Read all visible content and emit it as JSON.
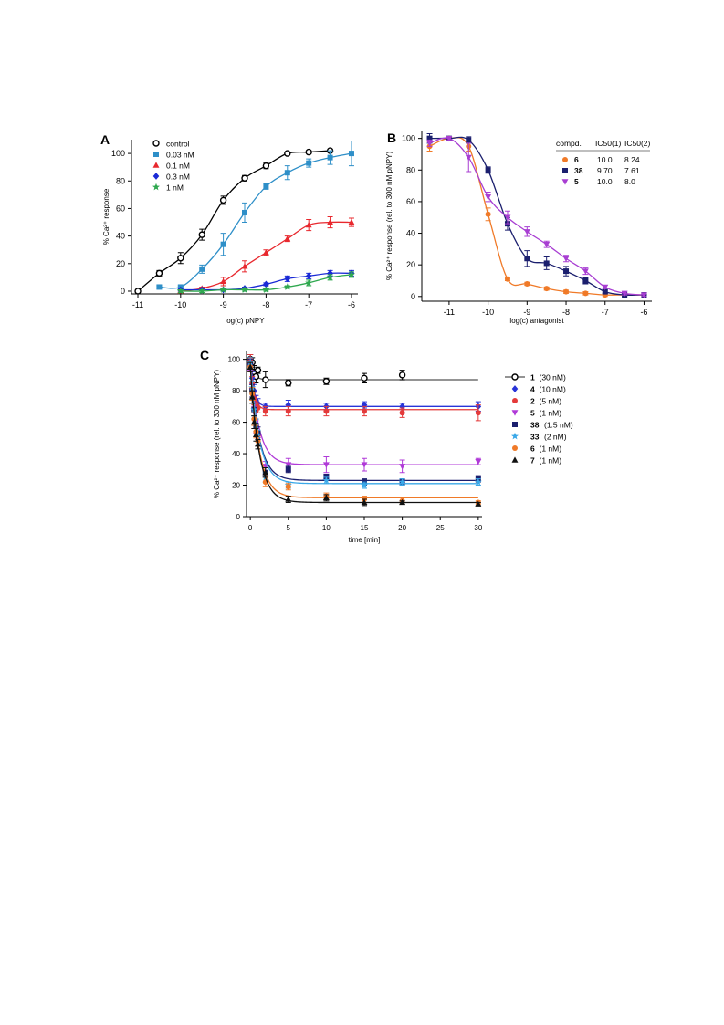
{
  "chart_data": [
    {
      "panel": "A",
      "type": "line",
      "xlabel": "log(c) pNPY",
      "ylabel": "% Ca²⁺ response",
      "xlim": [
        -11,
        -6
      ],
      "ylim": [
        0,
        110
      ],
      "xticks": [
        "-11",
        "-10",
        "-9",
        "-8",
        "-7",
        "-6"
      ],
      "yticks": [
        "0",
        "20",
        "40",
        "60",
        "80",
        "100"
      ],
      "legend_position": "top-left",
      "series": [
        {
          "name": "control",
          "marker": "open-circle",
          "color": "#000000",
          "x": [
            -11,
            -10.5,
            -10,
            -9.5,
            -9,
            -8.5,
            -8,
            -7.5,
            -7,
            -6.5
          ],
          "y": [
            0,
            13,
            24,
            41,
            66,
            82,
            91,
            100,
            101,
            102
          ],
          "err": [
            0,
            2,
            4,
            4,
            3,
            2,
            2,
            1,
            1,
            1
          ]
        },
        {
          "name": "0.03 nM",
          "marker": "square",
          "color": "#2e8fc8",
          "x": [
            -10.5,
            -10,
            -9.5,
            -9,
            -8.5,
            -8,
            -7.5,
            -7,
            -6.5,
            -6
          ],
          "y": [
            3,
            3,
            16,
            34,
            57,
            76,
            86,
            93,
            97,
            100
          ],
          "err": [
            1,
            1,
            3,
            8,
            7,
            2,
            5,
            3,
            5,
            9
          ]
        },
        {
          "name": "0.1 nM",
          "marker": "triangle",
          "color": "#e8282e",
          "x": [
            -10,
            -9.5,
            -9,
            -8.5,
            -8,
            -7.5,
            -7,
            -6.5,
            -6
          ],
          "y": [
            0,
            2,
            7,
            18,
            28,
            38,
            48,
            50,
            50
          ],
          "err": [
            1,
            1,
            3,
            4,
            2,
            2,
            4,
            4,
            3
          ]
        },
        {
          "name": "0.3 nM",
          "marker": "diamond",
          "color": "#1a2ad6",
          "x": [
            -10,
            -9.5,
            -9,
            -8.5,
            -8,
            -7.5,
            -7,
            -6.5,
            -6
          ],
          "y": [
            1,
            1,
            1,
            2,
            5,
            9,
            11,
            13,
            13
          ],
          "err": [
            1,
            1,
            1,
            1,
            1,
            2,
            2,
            2,
            2
          ]
        },
        {
          "name": "1 nM",
          "marker": "star",
          "color": "#2fa84f",
          "x": [
            -10,
            -9.5,
            -9,
            -8.5,
            -8,
            -7.5,
            -7,
            -6.5,
            -6
          ],
          "y": [
            0,
            0,
            1,
            1,
            1,
            3,
            6,
            10,
            12
          ],
          "err": [
            1,
            1,
            1,
            1,
            1,
            1,
            2,
            2,
            2
          ]
        }
      ]
    },
    {
      "panel": "B",
      "type": "line",
      "xlabel": "log(c) antagonist",
      "ylabel": "% Ca²⁺ response (rel. to 300 nM pNPY)",
      "xlim": [
        -11.7,
        -5.8
      ],
      "ylim": [
        0,
        105
      ],
      "xticks": [
        "-11",
        "-10",
        "-9",
        "-8",
        "-7",
        "-6"
      ],
      "yticks": [
        "0",
        "20",
        "40",
        "60",
        "80",
        "100"
      ],
      "legend_position": "top-right",
      "table": {
        "headers": [
          "compd.",
          "IC50(1)",
          "IC50(2)"
        ],
        "rows": [
          {
            "compd": "6",
            "ic1": "10.0",
            "ic2": "8.24"
          },
          {
            "compd": "38",
            "ic1": "9.70",
            "ic2": "7.61"
          },
          {
            "compd": "5",
            "ic1": "10.0",
            "ic2": "8.0"
          }
        ]
      },
      "series": [
        {
          "name": "6",
          "marker": "circle",
          "color": "#f07a28",
          "x": [
            -11.5,
            -11,
            -10.5,
            -10,
            -9.5,
            -9,
            -8.5,
            -8,
            -7.5,
            -7,
            -6.5,
            -6
          ],
          "y": [
            95,
            100,
            95,
            52,
            11,
            8,
            5,
            3,
            2,
            1,
            1,
            1
          ],
          "err": [
            3,
            1,
            3,
            4,
            1,
            1,
            1,
            1,
            1,
            1,
            1,
            1
          ]
        },
        {
          "name": "38",
          "marker": "square",
          "color": "#1b1f6e",
          "x": [
            -11.5,
            -11,
            -10.5,
            -10,
            -9.5,
            -9,
            -8.5,
            -8,
            -7.5,
            -7,
            -6.5,
            -6
          ],
          "y": [
            100,
            100,
            99,
            80,
            46,
            24,
            21,
            16,
            10,
            3,
            1,
            1
          ],
          "err": [
            3,
            1,
            2,
            2,
            4,
            5,
            4,
            3,
            2,
            1,
            1,
            1
          ]
        },
        {
          "name": "5",
          "marker": "triangle-down",
          "color": "#a83ed2",
          "x": [
            -11.5,
            -11,
            -10.5,
            -10,
            -9.5,
            -9,
            -8.5,
            -8,
            -7.5,
            -7,
            -6.5,
            -6
          ],
          "y": [
            97,
            100,
            88,
            63,
            50,
            41,
            33,
            24,
            16,
            6,
            2,
            1
          ],
          "err": [
            2,
            1,
            9,
            3,
            4,
            3,
            2,
            2,
            2,
            1,
            1,
            1
          ]
        }
      ]
    },
    {
      "panel": "C",
      "type": "line",
      "xlabel": "time [min]",
      "ylabel": "% Ca²⁺ response (rel. to 300 nM pNPY)",
      "xlim": [
        -0.5,
        30.5
      ],
      "ylim": [
        0,
        105
      ],
      "xticks": [
        "0",
        "5",
        "10",
        "15",
        "20",
        "25",
        "30"
      ],
      "yticks": [
        "0",
        "20",
        "40",
        "60",
        "80",
        "100"
      ],
      "legend_position": "right",
      "series": [
        {
          "name": "1",
          "label_suffix": "(30 nM)",
          "marker": "open-circle",
          "color": "#000000",
          "plateau": 87,
          "x": [
            0,
            0.25,
            0.5,
            0.75,
            1,
            2,
            5,
            10,
            15,
            20
          ],
          "y": [
            100,
            98,
            92,
            89,
            93,
            87,
            85,
            86,
            88,
            90
          ],
          "err": [
            3,
            3,
            4,
            4,
            2,
            5,
            2,
            2,
            3,
            3
          ]
        },
        {
          "name": "4",
          "label_suffix": "(10 nM)",
          "marker": "diamond",
          "color": "#2834d8",
          "plateau": 70,
          "x": [
            0,
            0.25,
            0.5,
            0.75,
            1,
            2,
            5,
            10,
            15,
            20,
            30
          ],
          "y": [
            100,
            88,
            80,
            74,
            72,
            70,
            71,
            70,
            71,
            70,
            70
          ],
          "err": [
            3,
            4,
            4,
            3,
            3,
            2,
            3,
            2,
            2,
            2,
            3
          ]
        },
        {
          "name": "2",
          "label_suffix": "(5 nM)",
          "marker": "circle",
          "color": "#e43a3a",
          "plateau": 68,
          "x": [
            0,
            0.25,
            0.5,
            0.75,
            1,
            2,
            5,
            10,
            15,
            20,
            30
          ],
          "y": [
            100,
            85,
            75,
            70,
            69,
            67,
            67,
            67,
            67,
            66,
            66
          ],
          "err": [
            3,
            4,
            4,
            3,
            3,
            3,
            3,
            3,
            3,
            3,
            5
          ]
        },
        {
          "name": "5",
          "label_suffix": "(1 nM)",
          "marker": "triangle-down",
          "color": "#b03ad8",
          "plateau": 33,
          "x": [
            0,
            0.25,
            0.5,
            0.75,
            1,
            2,
            5,
            10,
            15,
            20,
            30
          ],
          "y": [
            96,
            80,
            66,
            57,
            49,
            32,
            33,
            33,
            33,
            32,
            35
          ],
          "err": [
            3,
            4,
            4,
            4,
            4,
            3,
            4,
            5,
            4,
            4,
            2
          ]
        },
        {
          "name": "38",
          "label_suffix": "(1.5 nM)",
          "marker": "square",
          "color": "#1b1f6e",
          "plateau": 23,
          "x": [
            0,
            0.25,
            0.5,
            0.75,
            1,
            2,
            5,
            10,
            15,
            20,
            30
          ],
          "y": [
            97,
            80,
            68,
            58,
            53,
            28,
            30,
            25,
            22,
            22,
            24
          ],
          "err": [
            3,
            4,
            4,
            4,
            4,
            3,
            2,
            2,
            2,
            2,
            2
          ]
        },
        {
          "name": "33",
          "label_suffix": "(2 nM)",
          "marker": "star",
          "color": "#3aa8e8",
          "plateau": 21,
          "x": [
            0,
            0.25,
            0.5,
            0.75,
            1,
            2,
            5,
            10,
            15,
            20,
            30
          ],
          "y": [
            98,
            82,
            68,
            58,
            52,
            25,
            20,
            23,
            20,
            22,
            22
          ],
          "err": [
            3,
            4,
            4,
            4,
            3,
            3,
            2,
            2,
            2,
            2,
            2
          ]
        },
        {
          "name": "6",
          "label_suffix": "(1 nM)",
          "marker": "circle",
          "color": "#f07a28",
          "plateau": 12,
          "x": [
            0,
            0.25,
            0.5,
            0.75,
            1,
            2,
            5,
            10,
            15,
            20,
            30
          ],
          "y": [
            95,
            78,
            62,
            54,
            48,
            22,
            19,
            13,
            11,
            10,
            9
          ],
          "err": [
            3,
            4,
            4,
            4,
            3,
            3,
            2,
            2,
            2,
            2,
            1
          ]
        },
        {
          "name": "7",
          "label_suffix": "(1 nM)",
          "marker": "triangle",
          "color": "#111111",
          "plateau": 9,
          "x": [
            0,
            0.25,
            0.5,
            0.75,
            1,
            2,
            5,
            10,
            15,
            20,
            30
          ],
          "y": [
            95,
            76,
            60,
            52,
            46,
            28,
            11,
            12,
            9,
            9,
            8
          ],
          "err": [
            3,
            4,
            4,
            4,
            3,
            3,
            2,
            2,
            2,
            1,
            1
          ]
        }
      ]
    }
  ]
}
